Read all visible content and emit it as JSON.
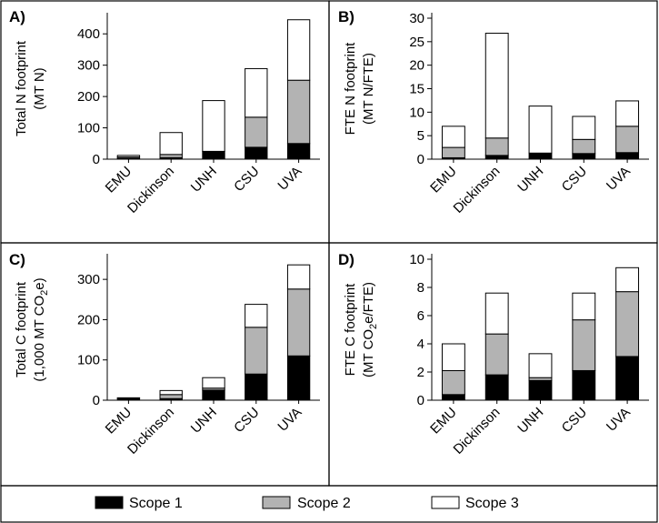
{
  "colors": {
    "scope1": "#000000",
    "scope2": "#b3b3b3",
    "scope3": "#ffffff"
  },
  "legend": {
    "scope1": "Scope 1",
    "scope2": "Scope 2",
    "scope3": "Scope 3"
  },
  "chart_data": [
    {
      "id": "A",
      "letter": "A)",
      "type": "bar",
      "stacked": true,
      "ylabel_line1": "Total N footprint",
      "ylabel_line2": "(MT N)",
      "ylim": [
        0,
        450
      ],
      "yticks": [
        0,
        100,
        200,
        300,
        400
      ],
      "categories": [
        "EMU",
        "Dickinson",
        "UNH",
        "CSU",
        "UVA"
      ],
      "series": [
        {
          "name": "Scope 1",
          "values": [
            3,
            5,
            25,
            38,
            50
          ]
        },
        {
          "name": "Scope 2",
          "values": [
            4,
            10,
            0,
            96,
            202
          ]
        },
        {
          "name": "Scope 3",
          "values": [
            5,
            70,
            162,
            155,
            193
          ]
        }
      ]
    },
    {
      "id": "B",
      "letter": "B)",
      "type": "bar",
      "stacked": true,
      "ylabel_line1": "FTE N footprint",
      "ylabel_line2": "(MT N/FTE)",
      "ylim": [
        0,
        30
      ],
      "yticks": [
        0,
        5,
        10,
        15,
        20,
        25,
        30
      ],
      "categories": [
        "EMU",
        "Dickinson",
        "UNH",
        "CSU",
        "UVA"
      ],
      "series": [
        {
          "name": "Scope 1",
          "values": [
            0.3,
            0.8,
            1.3,
            1.2,
            1.4
          ]
        },
        {
          "name": "Scope 2",
          "values": [
            2.2,
            3.7,
            0,
            3.0,
            5.6
          ]
        },
        {
          "name": "Scope 3",
          "values": [
            4.5,
            22.3,
            10.0,
            4.9,
            5.4
          ]
        }
      ]
    },
    {
      "id": "C",
      "letter": "C)",
      "type": "bar",
      "stacked": true,
      "ylabel_line1": "Total C footprint",
      "ylabel_line2_pre": "(1,000 MT CO",
      "ylabel_line2_sub": "2",
      "ylabel_line2_post": "e)",
      "ylim": [
        0,
        350
      ],
      "yticks": [
        0,
        100,
        200,
        300
      ],
      "categories": [
        "EMU",
        "Dickinson",
        "UNH",
        "CSU",
        "UVA"
      ],
      "series": [
        {
          "name": "Scope 1",
          "values": [
            4,
            4,
            25,
            65,
            110
          ]
        },
        {
          "name": "Scope 2",
          "values": [
            1,
            10,
            5,
            116,
            166
          ]
        },
        {
          "name": "Scope 3",
          "values": [
            1,
            10,
            26,
            57,
            60
          ]
        }
      ]
    },
    {
      "id": "D",
      "letter": "D)",
      "type": "bar",
      "stacked": true,
      "ylabel_line1": "FTE C footprint",
      "ylabel_line2_pre": "(MT CO",
      "ylabel_line2_sub": "2",
      "ylabel_line2_post": "e/FTE)",
      "ylim": [
        0,
        10
      ],
      "yticks": [
        0,
        2,
        4,
        6,
        8,
        10
      ],
      "categories": [
        "EMU",
        "Dickinson",
        "UNH",
        "CSU",
        "UVA"
      ],
      "series": [
        {
          "name": "Scope 1",
          "values": [
            0.4,
            1.8,
            1.4,
            2.1,
            3.1
          ]
        },
        {
          "name": "Scope 2",
          "values": [
            1.7,
            2.9,
            0.2,
            3.6,
            4.6
          ]
        },
        {
          "name": "Scope 3",
          "values": [
            1.9,
            2.9,
            1.7,
            1.9,
            1.7
          ]
        }
      ]
    }
  ]
}
